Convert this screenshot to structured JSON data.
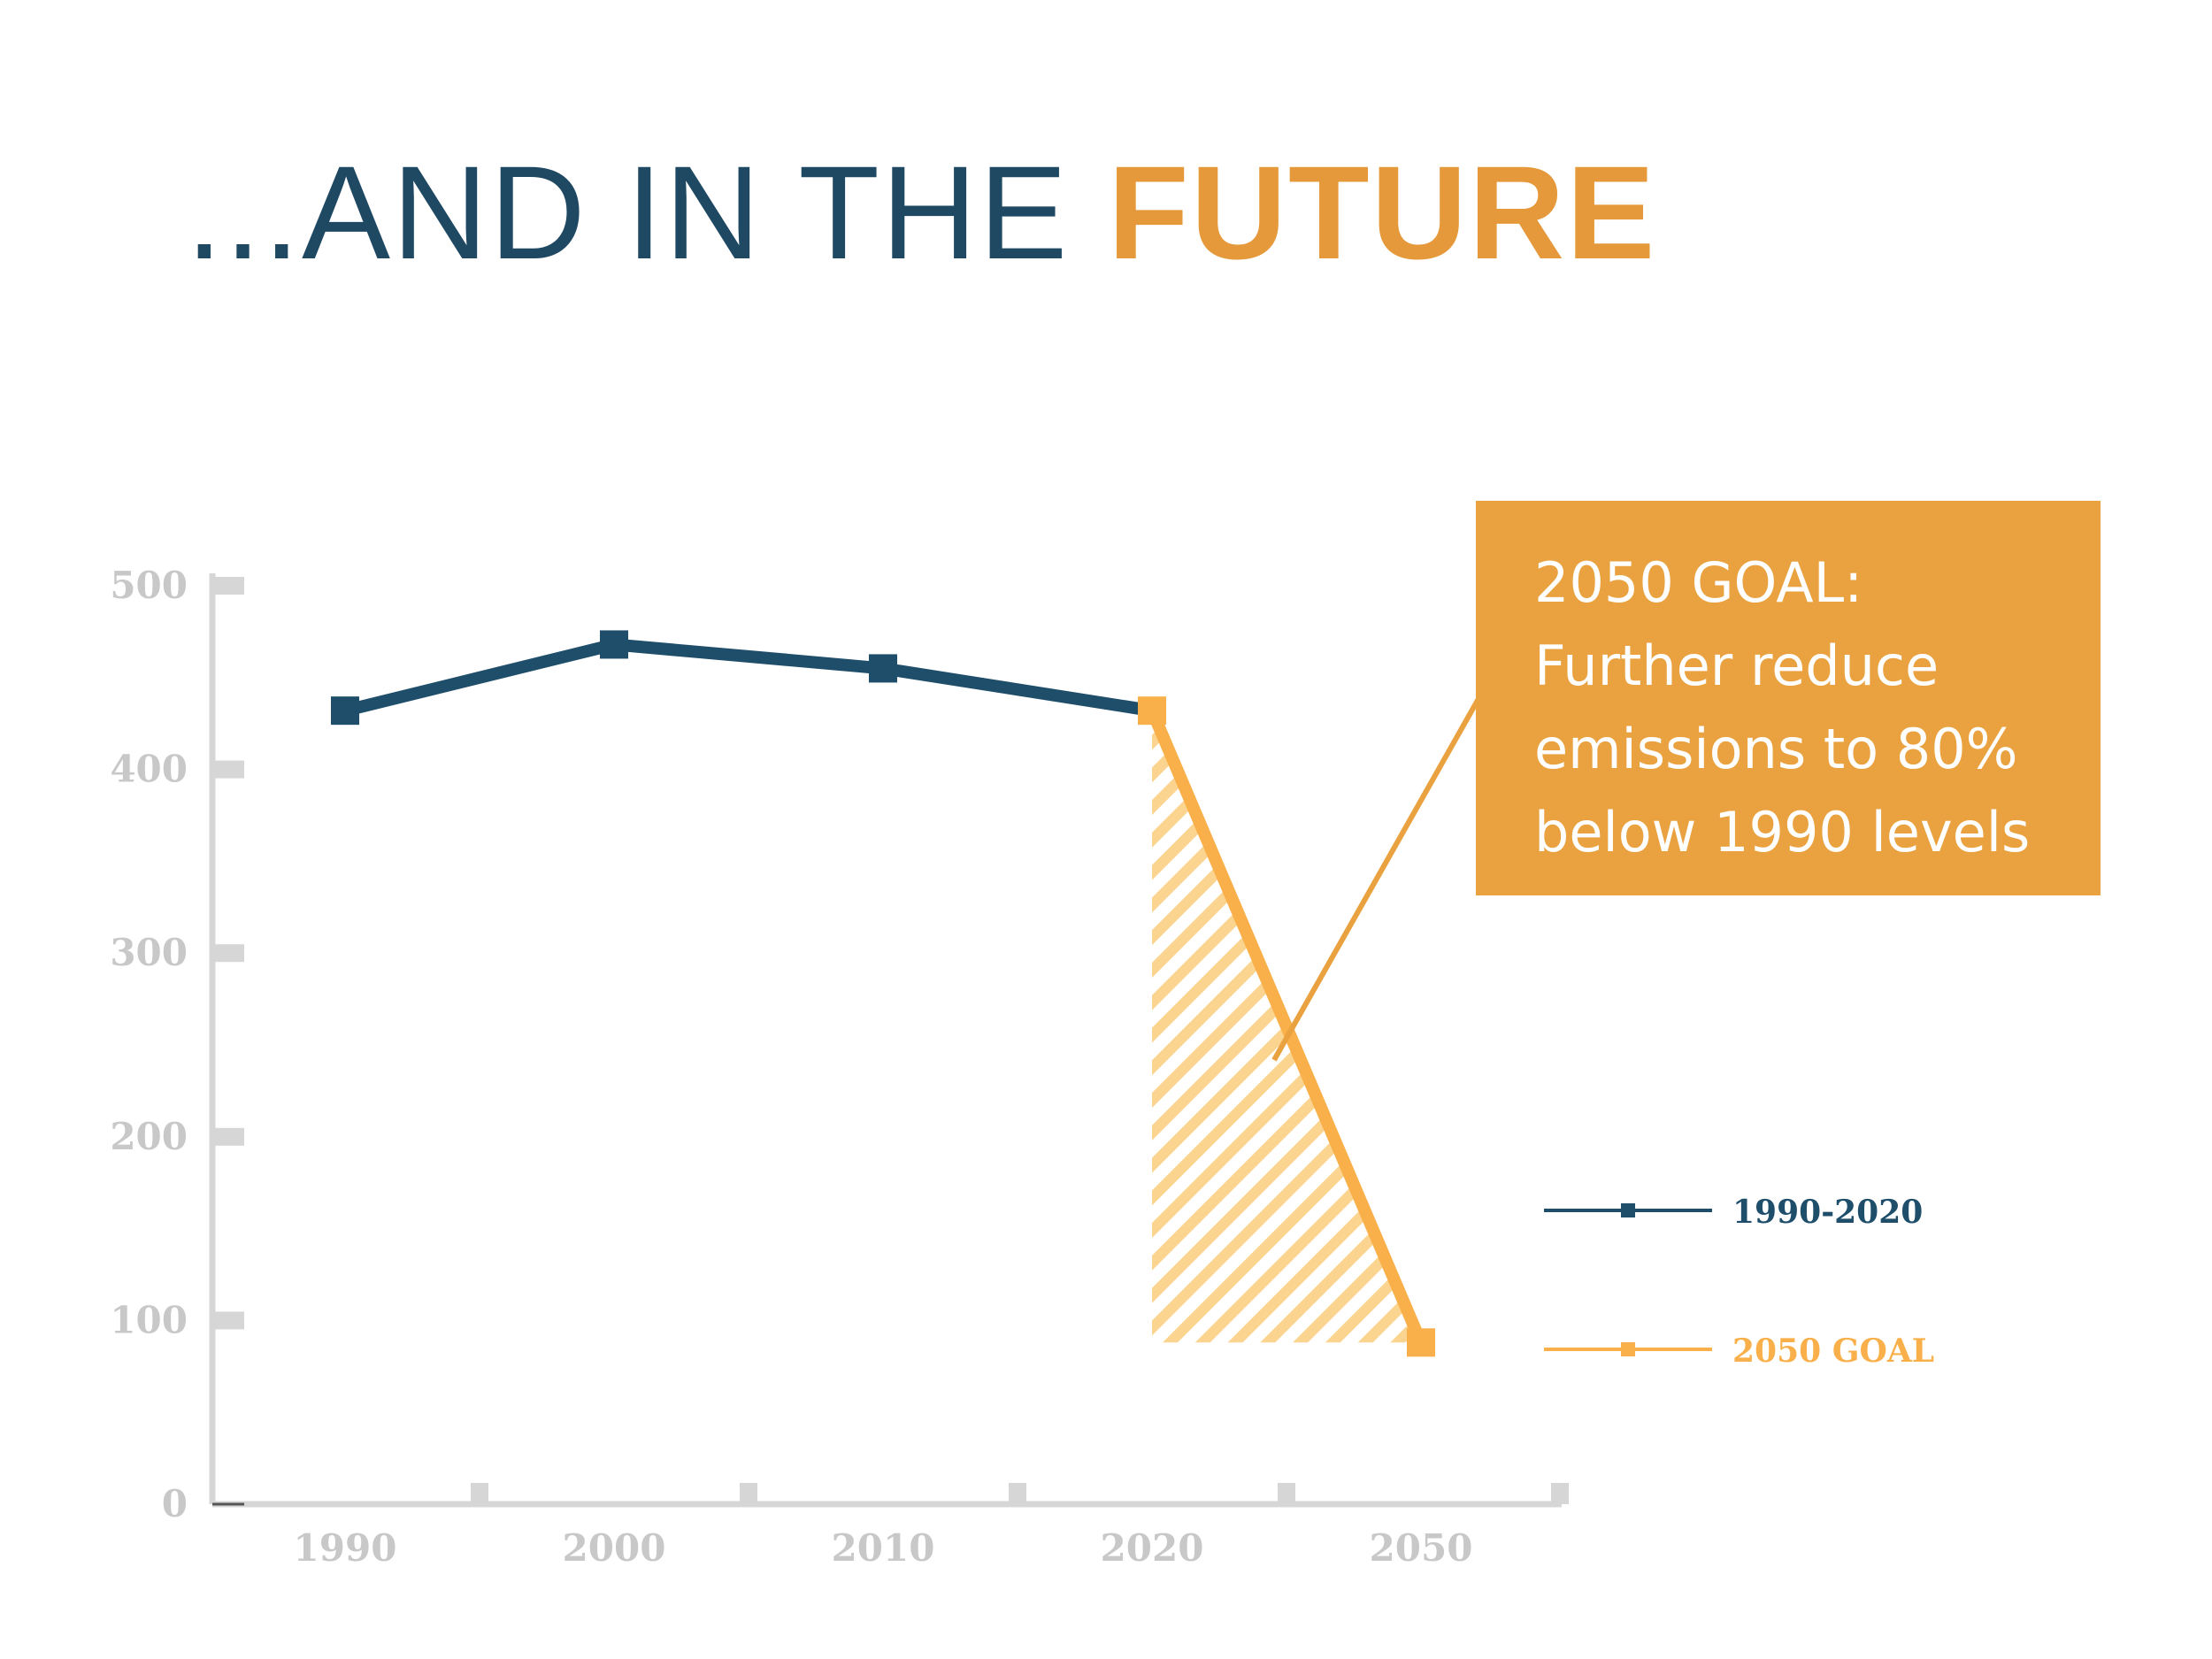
{
  "title": {
    "part1": "...AND IN THE ",
    "part2": "FUTURE"
  },
  "colors": {
    "historical": "#1f4e6b",
    "goal": "#f9b04a",
    "callout_bg": "#e9a23f",
    "axis": "#d6d6d6",
    "tick_text": "#c8c8c8",
    "title_dark": "#1f4863",
    "title_accent": "#e5993a"
  },
  "callout": {
    "lines": [
      "2050 GOAL:",
      "Further reduce",
      "emissions to 80%",
      "below 1990 levels"
    ]
  },
  "chart_data": {
    "type": "line",
    "categories": [
      "1990",
      "2000",
      "2010",
      "2020",
      "2050"
    ],
    "ylim": [
      0,
      500
    ],
    "yticks": [
      "500",
      "400",
      "300",
      "200",
      "100",
      "0"
    ],
    "grid": false,
    "legend_position": "right",
    "series": [
      {
        "name": "1990-2020",
        "x": [
          "1990",
          "2000",
          "2010",
          "2020"
        ],
        "values": [
          432,
          468,
          455,
          432
        ]
      },
      {
        "name": "2050 GOAL",
        "x": [
          "2020",
          "2050"
        ],
        "values": [
          432,
          88
        ]
      }
    ]
  }
}
